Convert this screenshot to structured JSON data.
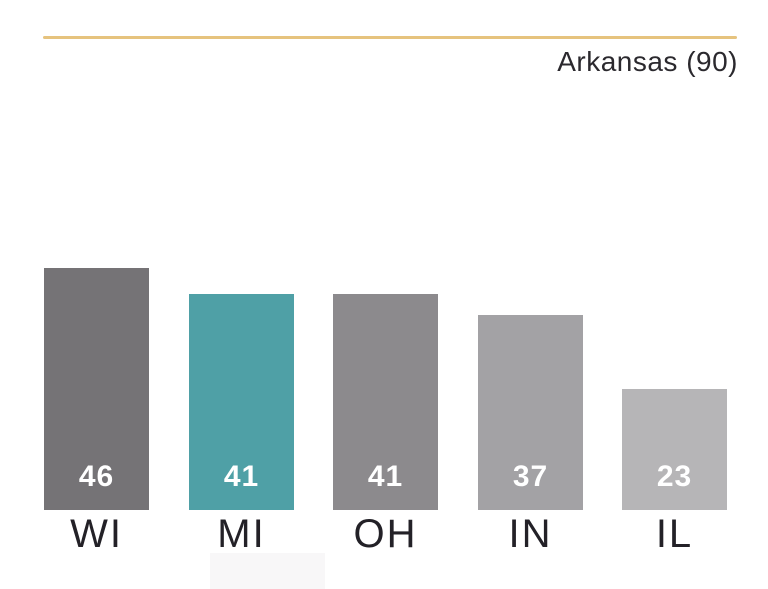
{
  "header": {
    "title": "Arkansas (90)",
    "rule_color": "#E6C37E",
    "title_color": "#2B292E"
  },
  "chart_data": {
    "type": "bar",
    "title": "Arkansas (90)",
    "categories": [
      "WI",
      "MI",
      "OH",
      "IN",
      "IL"
    ],
    "values": [
      46,
      41,
      41,
      37,
      23
    ],
    "bar_colors": [
      "#757376",
      "#4FA0A6",
      "#8C8A8D",
      "#A3A2A5",
      "#B6B5B7"
    ],
    "highlight_category": "MI",
    "highlight_color": "#4FA0A6",
    "value_label_color": "#FFFFFF",
    "category_label_color": "#232127",
    "xlabel": "",
    "ylabel": "",
    "ylim": [
      0,
      46
    ],
    "grid": false,
    "axes_hidden": true,
    "legend": "none",
    "value_label_position": "inside-bottom"
  },
  "decoration": {
    "remnant_color": "#F8F7F8"
  }
}
